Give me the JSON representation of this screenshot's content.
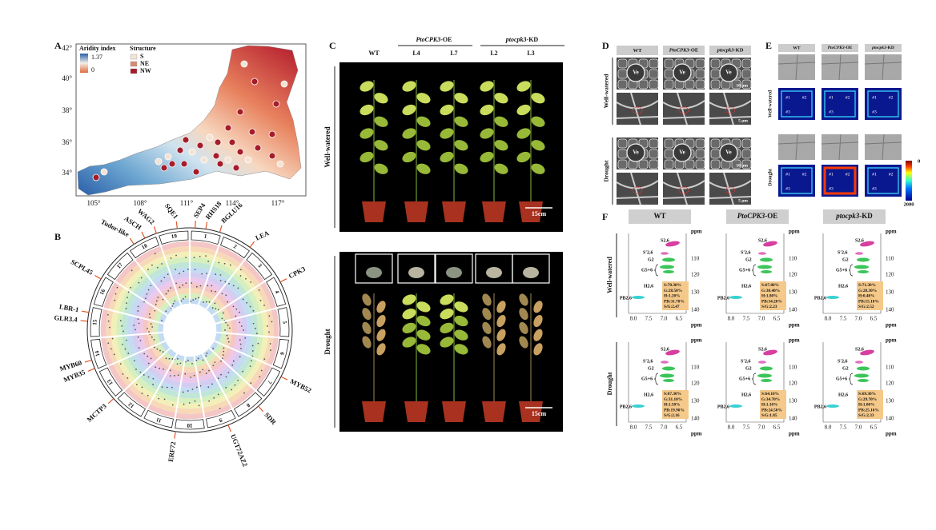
{
  "a": {
    "label": "A",
    "legend": {
      "aridity_title": "Aridity index",
      "aridity_max": "1.37",
      "aridity_min": "0",
      "structure_title": "Structure",
      "structure": [
        "S",
        "NE",
        "NW"
      ]
    },
    "lat": [
      "42°",
      "40°",
      "38°",
      "36°",
      "34°"
    ],
    "lon": [
      "105°",
      "108°",
      "111°",
      "114°",
      "117°"
    ]
  },
  "b": {
    "label": "B",
    "genes": [
      "Tudor-like",
      "ASCH",
      "WAG2",
      "SQE1",
      "SEP4",
      "RHS18",
      "BGLU16",
      "LEA",
      "CPK3",
      "MYB52",
      "SDR",
      "UGT72AZ2",
      "ERF72",
      "MCTP3",
      "MYB35",
      "MYB60",
      "GLR3.4",
      "LBR-1",
      "SCPL45"
    ],
    "chromosomes": [
      "1",
      "2",
      "3",
      "4",
      "5",
      "6",
      "7",
      "8",
      "9",
      "10",
      "11",
      "12",
      "13",
      "14",
      "15",
      "16",
      "17",
      "18",
      "19"
    ]
  },
  "c": {
    "label": "C",
    "columns": [
      "WT",
      {
        "gene": "PtoCPK3",
        "suffix": "-OE"
      },
      {
        "gene": "ptocpk3",
        "suffix": "-KD"
      }
    ],
    "lines": [
      [
        "L4",
        "L7"
      ],
      [
        "L2",
        "L3"
      ]
    ],
    "rows": [
      "Well-watered",
      "Drought"
    ],
    "scale": "15cm"
  },
  "d": {
    "label": "D",
    "columns": [
      "WT",
      {
        "gene": "PtoCPK3",
        "suffix": "-OE"
      },
      {
        "gene": "ptocpk3",
        "suffix": "-KD"
      }
    ],
    "rows": [
      "Well-watered",
      "Drought"
    ],
    "vessel": "Ve",
    "scales": [
      "10 μm",
      "5 μm"
    ]
  },
  "e": {
    "label": "E",
    "columns": [
      "WT",
      {
        "gene": "PtoCPK3",
        "suffix": "-OE"
      },
      {
        "gene": "ptocpk3",
        "suffix": "-KD"
      }
    ],
    "rows": [
      "Well-watered",
      "Drought"
    ],
    "regions": [
      "#1",
      "#2",
      "#3"
    ],
    "colorbar": [
      "0",
      "2000"
    ]
  },
  "f": {
    "label": "F",
    "columns": [
      "WT",
      {
        "gene": "PtoCPK3",
        "suffix": "-OE"
      },
      {
        "gene": "ptocpk3",
        "suffix": "-KD"
      }
    ],
    "rows": [
      "Well-watered",
      "Drought"
    ],
    "signals": {
      "s": "S2,6",
      "s_prime": "S′2,6",
      "g2": "G2",
      "g56": "G5+6",
      "h": "H2,6",
      "pb": "PB2,6"
    },
    "unit": "ppm",
    "yticks": [
      "110",
      "120",
      "130",
      "140"
    ],
    "xticks": [
      "8.0",
      "7.5",
      "7.0",
      "6.5"
    ],
    "composition": [
      [
        [
          "S:70.30%",
          "G:28.50%",
          "H:1.20%",
          "PB:31.70%",
          "S/G:2.47"
        ],
        [
          "S:67.80%",
          "G:30.40%",
          "H:1.80%",
          "PB:34.20%",
          "S/G:2.23"
        ],
        [
          "S:71.30%",
          "G:28.30%",
          "H:0.40%",
          "PB:15.10%",
          "S/G:2.52"
        ]
      ],
      [
        [
          "S:67.30%",
          "G:31.10%",
          "H:1.50%",
          "PB:19.90%",
          "S/G:2.16"
        ],
        [
          "S:64.10%",
          "G:34.70%",
          "H:1.10%",
          "PB:24.50%",
          "S/G:1.85"
        ],
        [
          "S:69.30%",
          "G:29.70%",
          "H:1.00%",
          "PB:25.10%",
          "S/G:2.33"
        ]
      ]
    ]
  }
}
